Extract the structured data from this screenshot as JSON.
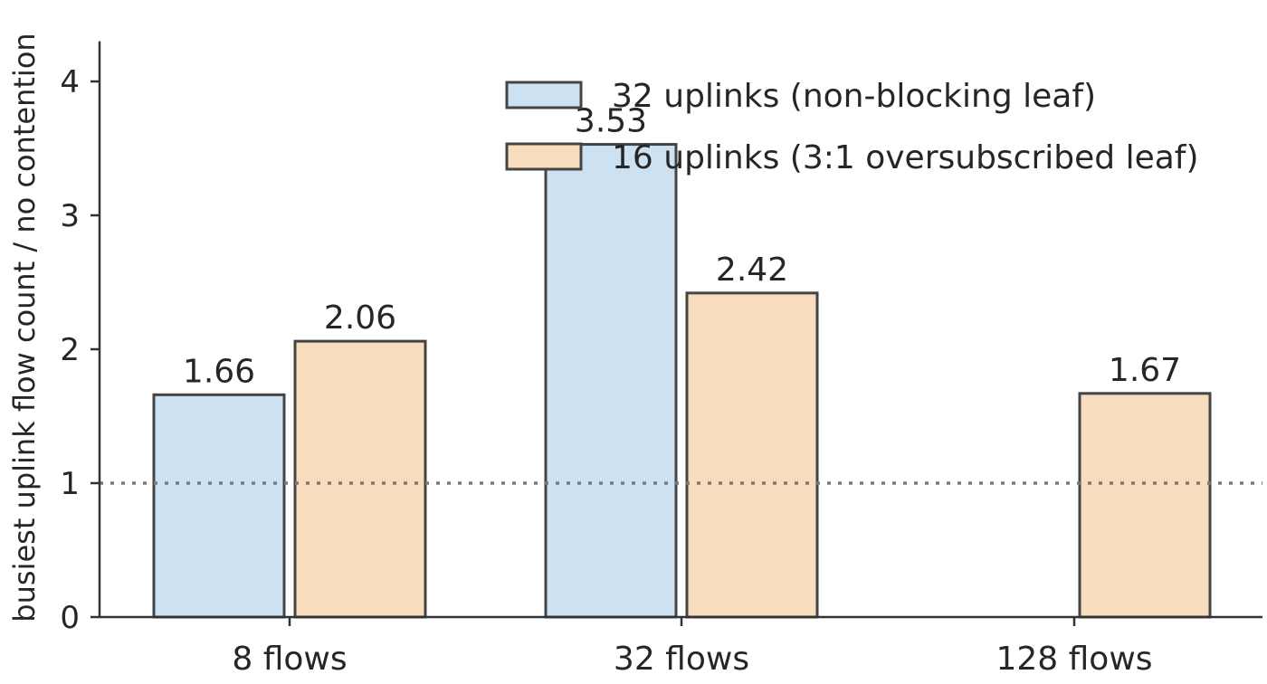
{
  "chart_data": {
    "type": "bar",
    "categories": [
      "8 flows",
      "32 flows",
      "128 flows"
    ],
    "series": [
      {
        "name": "32 uplinks (non-blocking leaf)",
        "values": [
          1.66,
          3.53,
          null
        ],
        "labels": [
          "1.66",
          "3.53",
          ""
        ],
        "color": "#cce2f2"
      },
      {
        "name": "16 uplinks (3:1 oversubscribed leaf)",
        "values": [
          2.06,
          2.42,
          1.67
        ],
        "labels": [
          "2.06",
          "2.42",
          "1.67"
        ],
        "color": "#f7ddbd"
      }
    ],
    "ylabel": "busiest uplink flow count / no contention",
    "xlabel": "",
    "ylim": [
      0,
      4.3
    ],
    "yticks": [
      0,
      1,
      2,
      3,
      4
    ],
    "reference_line": {
      "y": 1,
      "style": "dotted",
      "color": "#7a7a7a"
    },
    "edge_color": "#444444",
    "grid": false,
    "legend_position": "top-right"
  }
}
